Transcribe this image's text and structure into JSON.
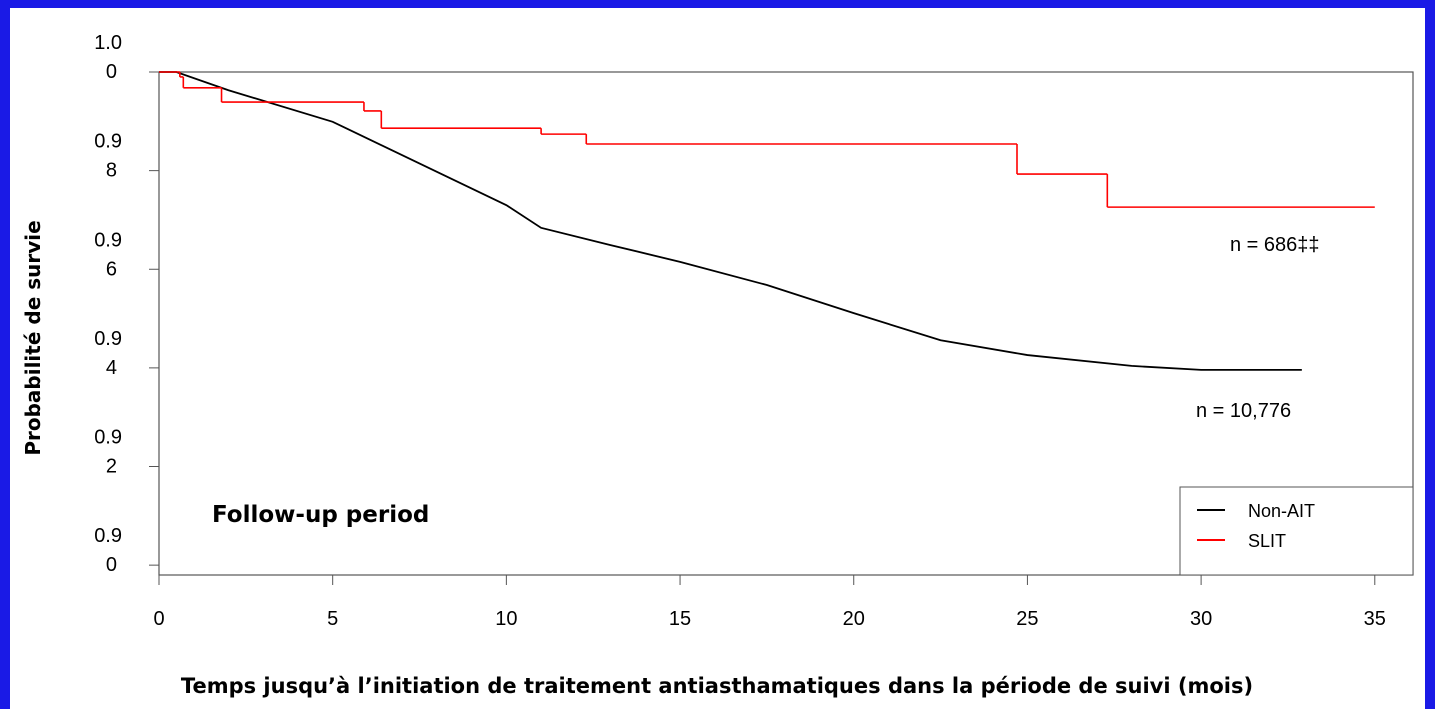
{
  "chart_data": {
    "type": "line",
    "y_label": "Probabilité de survie",
    "x_label": "Temps jusqu’à l’initiation de traitement antiasthamatiques dans la période de suivi (mois)",
    "annotations": [
      "Follow-up period",
      "n = 686‡‡",
      "n = 10,776"
    ],
    "xlim": [
      0,
      36.1
    ],
    "ylim": [
      0.898,
      1.0
    ],
    "xticks": [
      0,
      5,
      10,
      15,
      20,
      25,
      30,
      35
    ],
    "yticks": [
      {
        "value": 1.0,
        "label": "1.00"
      },
      {
        "value": 0.98,
        "label": "0.98"
      },
      {
        "value": 0.96,
        "label": "0.96"
      },
      {
        "value": 0.94,
        "label": "0.94"
      },
      {
        "value": 0.92,
        "label": "0.92"
      },
      {
        "value": 0.9,
        "label": "0.90"
      }
    ],
    "legend": "bottom-right",
    "series": [
      {
        "name": "Non-AIT",
        "color": "#000000",
        "step": false,
        "x": [
          0,
          0.5,
          2,
          5,
          10,
          11,
          13,
          15,
          17.5,
          20,
          22.5,
          25,
          28,
          30,
          32.9
        ],
        "values": [
          1.0,
          1.0,
          0.9963,
          0.9899,
          0.973,
          0.9684,
          0.9649,
          0.9615,
          0.9568,
          0.9511,
          0.9456,
          0.9426,
          0.9404,
          0.9396,
          0.9396
        ]
      },
      {
        "name": "SLIT",
        "color": "#ff0000",
        "step": true,
        "x": [
          0,
          0.6,
          0.7,
          1.8,
          5.9,
          6.4,
          11,
          12.3,
          24.7,
          27.3,
          35
        ],
        "values": [
          1.0,
          0.999,
          0.9968,
          0.9939,
          0.9921,
          0.9886,
          0.9874,
          0.9854,
          0.9793,
          0.9726,
          0.9726
        ]
      }
    ]
  }
}
